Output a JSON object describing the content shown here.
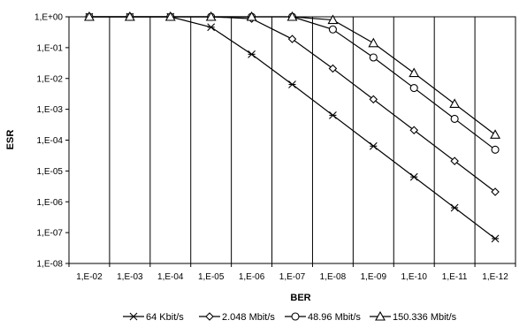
{
  "chart_data": {
    "type": "line",
    "xlabel": "BER",
    "ylabel": "ESR",
    "x_scale": "log",
    "y_scale": "log",
    "x_reversed": true,
    "x": [
      0.01,
      0.001,
      0.0001,
      1e-05,
      1e-06,
      1e-07,
      1e-08,
      1e-09,
      1e-10,
      1e-11,
      1e-12
    ],
    "xtick_labels": [
      "1,E-02",
      "1,E-03",
      "1,E-04",
      "1,E-05",
      "1,E-06",
      "1,E-07",
      "1,E-08",
      "1,E-09",
      "1,E-10",
      "1,E-11",
      "1,E-12"
    ],
    "ytick_labels": [
      "1,E+00",
      "1,E-01",
      "1,E-02",
      "1,E-03",
      "1,E-04",
      "1,E-05",
      "1,E-06",
      "1,E-07",
      "1,E-08"
    ],
    "ylim": [
      1e-08,
      1
    ],
    "grid": "vertical",
    "legend_position": "bottom",
    "series": [
      {
        "name": "64 Kbit/s",
        "marker": "asterisk",
        "values": [
          1,
          1,
          1,
          0.46,
          0.061,
          0.0064,
          0.00064,
          6.4e-05,
          6.4e-06,
          6.4e-07,
          6.4e-08
        ]
      },
      {
        "name": "2.048 Mbit/s",
        "marker": "diamond",
        "values": [
          1,
          1,
          1,
          1,
          0.87,
          0.19,
          0.021,
          0.0021,
          0.00021,
          2.1e-05,
          2.1e-06
        ]
      },
      {
        "name": "48.96 Mbit/s",
        "marker": "circle",
        "values": [
          1,
          1,
          1,
          1,
          1,
          1,
          0.39,
          0.048,
          0.0049,
          0.00049,
          4.9e-05
        ]
      },
      {
        "name": "150.336 Mbit/s",
        "marker": "triangle",
        "values": [
          1,
          1,
          1,
          1,
          1,
          1,
          0.79,
          0.14,
          0.015,
          0.0015,
          0.00015
        ]
      }
    ]
  }
}
